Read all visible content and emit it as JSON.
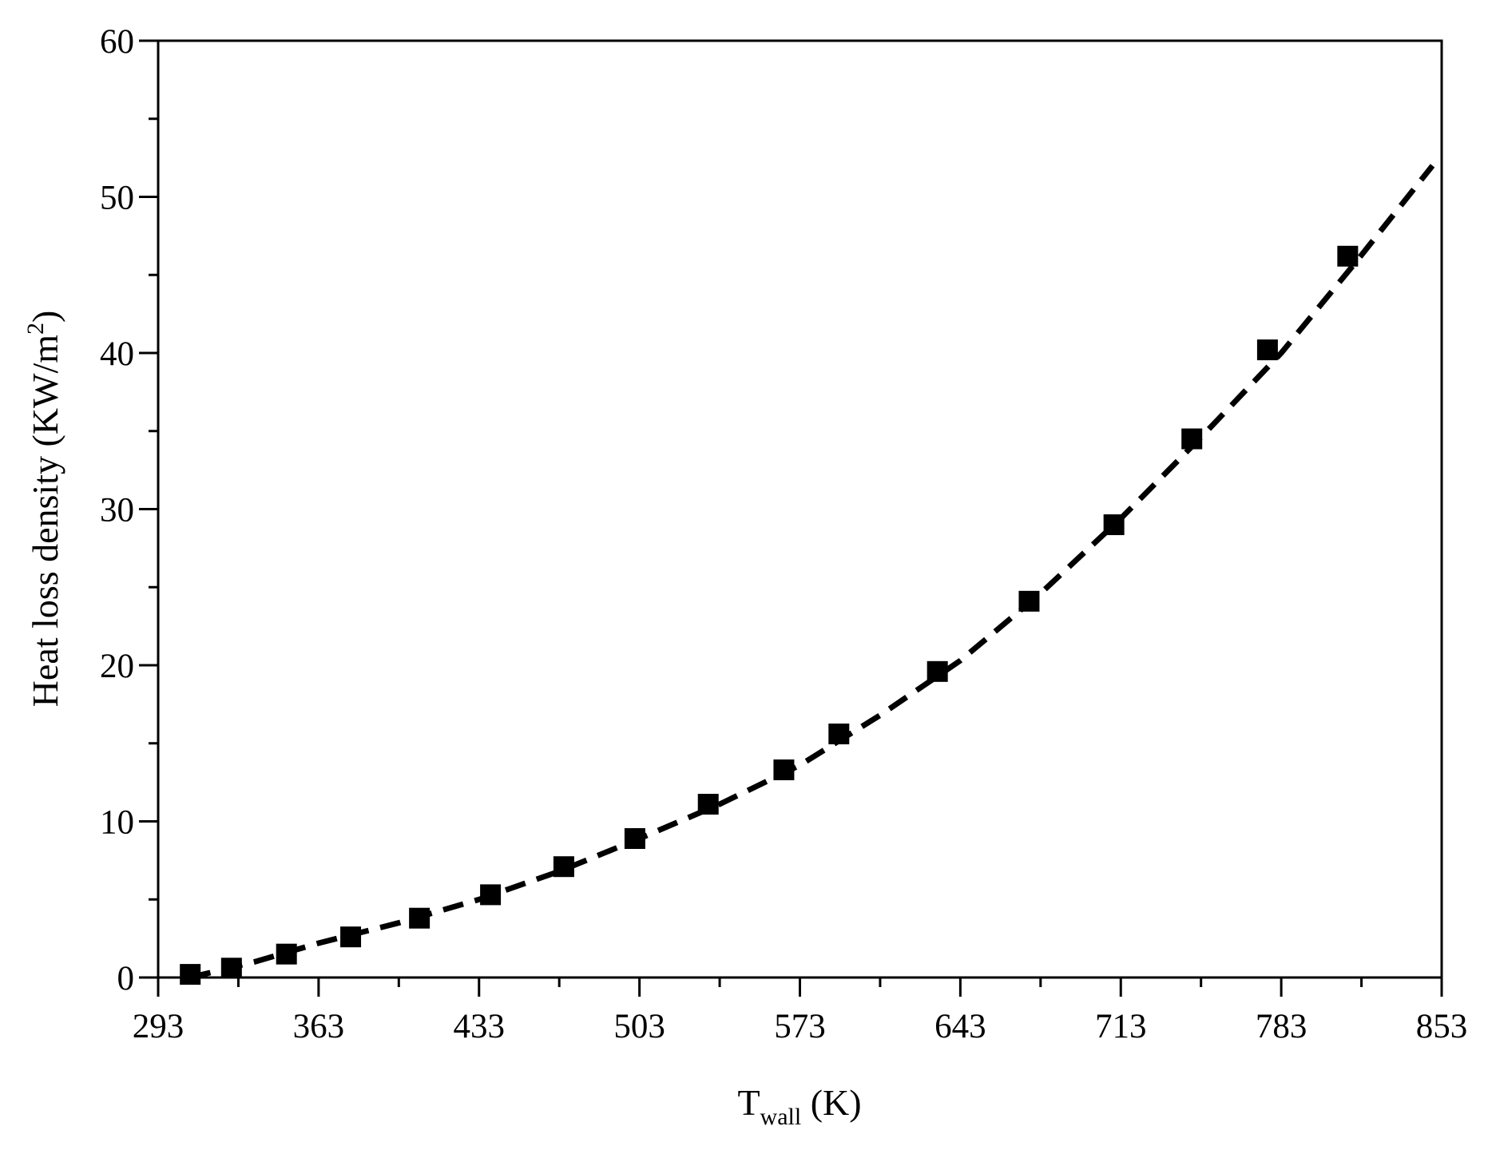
{
  "chart_data": {
    "type": "scatter",
    "xlabel": {
      "main": "T",
      "sub": "wall",
      "rest": " (K)"
    },
    "ylabel": {
      "main": "Heat loss density (KW/m",
      "sup": "2",
      "rest": ")"
    },
    "xlim": [
      293,
      853
    ],
    "xticks": [
      293,
      363,
      433,
      503,
      573,
      643,
      713,
      783,
      853
    ],
    "ylim": [
      0,
      60
    ],
    "yticks": [
      0,
      10,
      20,
      30,
      40,
      50,
      60
    ],
    "series": [
      {
        "type": "scatter",
        "color": "#000000",
        "x": [
          307,
          325,
          349,
          377,
          407,
          438,
          470,
          501,
          533,
          566,
          590,
          633,
          673,
          710,
          744,
          777,
          812
        ],
        "values": [
          0.2,
          0.6,
          1.5,
          2.6,
          3.8,
          5.3,
          7.1,
          8.9,
          11.1,
          13.3,
          15.6,
          19.6,
          24.1,
          29.0,
          34.5,
          40.2,
          46.2
        ]
      },
      {
        "type": "line",
        "color": "#000000",
        "x": [
          307,
          335,
          363,
          398,
          433,
          468,
          503,
          538,
          573,
          608,
          643,
          678,
          713,
          748,
          783,
          816,
          849
        ],
        "values": [
          0,
          1.0,
          2.2,
          3.5,
          5.0,
          6.8,
          8.9,
          11.1,
          13.6,
          16.8,
          20.3,
          24.6,
          29.4,
          34.6,
          40.0,
          45.9,
          52.0
        ]
      }
    ]
  }
}
